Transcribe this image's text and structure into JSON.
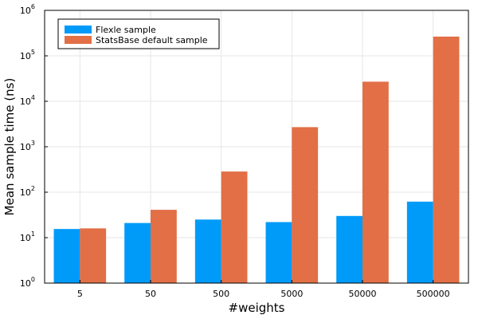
{
  "chart_data": {
    "type": "bar",
    "xlabel": "#weights",
    "ylabel": "Mean sample time (ns)",
    "categories": [
      "5",
      "50",
      "500",
      "5000",
      "50000",
      "500000"
    ],
    "y_scale": "log10",
    "ylim": [
      1,
      1000000
    ],
    "y_tick_exponents": [
      "0",
      "1",
      "2",
      "3",
      "4",
      "5",
      "6"
    ],
    "grid": true,
    "legend_position": "top-left",
    "series": [
      {
        "name": "Flexle sample",
        "color": "#009af9",
        "values": [
          15.5,
          21,
          25,
          22,
          30,
          62
        ]
      },
      {
        "name": "StatsBase default sample",
        "color": "#e26f46",
        "values": [
          16,
          41,
          285,
          2700,
          27000,
          265000
        ]
      }
    ]
  }
}
